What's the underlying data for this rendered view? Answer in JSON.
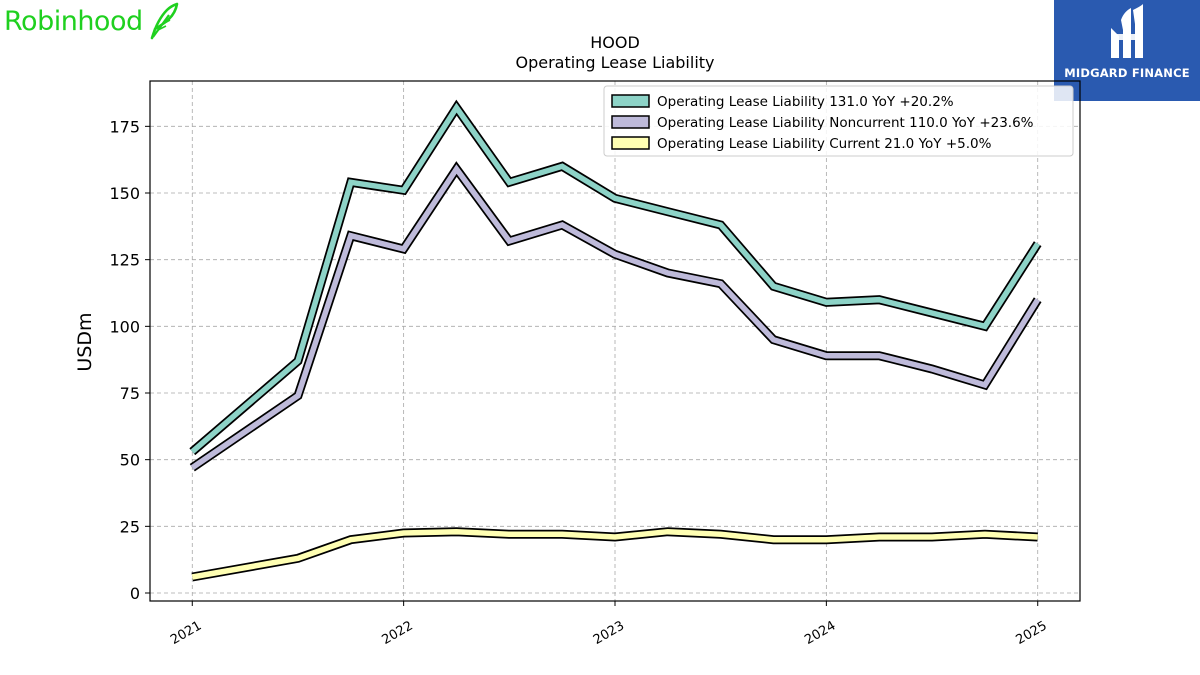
{
  "brand": {
    "name": "Robinhood",
    "color": "#1fd01f",
    "icon": "feather-icon"
  },
  "badge": {
    "name": "MIDGARD FINANCE",
    "background": "#2a5ab0",
    "icon": "midgard-logo-icon"
  },
  "chart_data": {
    "type": "line",
    "title": "HOOD",
    "subtitle": "Operating Lease Liability",
    "ylabel": "USDm",
    "xlabel": "",
    "ylim": [
      -3,
      192
    ],
    "xlim": [
      2020.8,
      2025.2
    ],
    "yticks": [
      0,
      25,
      50,
      75,
      100,
      125,
      150,
      175
    ],
    "xticks": [
      {
        "value": 2021,
        "label": "2021"
      },
      {
        "value": 2022,
        "label": "2022"
      },
      {
        "value": 2023,
        "label": "2023"
      },
      {
        "value": 2024,
        "label": "2024"
      },
      {
        "value": 2025,
        "label": "2025"
      }
    ],
    "grid": true,
    "legend_position": "top-right",
    "x": [
      2021.0,
      2021.5,
      2021.75,
      2022.0,
      2022.25,
      2022.5,
      2022.75,
      2023.0,
      2023.25,
      2023.5,
      2023.75,
      2024.0,
      2024.25,
      2024.5,
      2024.75,
      2025.0
    ],
    "series": [
      {
        "name": "Operating Lease Liability",
        "legend": "Operating Lease Liability  131.0 YoY +20.2%",
        "color": "#8dd3c7",
        "values": [
          53,
          87,
          154,
          151,
          182,
          154,
          160,
          148,
          143,
          138,
          115,
          109,
          110,
          105,
          100,
          131
        ]
      },
      {
        "name": "Operating Lease Liability Noncurrent",
        "legend": "Operating Lease Liability Noncurrent  110.0 YoY +23.6%",
        "color": "#bebada",
        "values": [
          47,
          74,
          134,
          129,
          159,
          132,
          138,
          127,
          120,
          116,
          95,
          89,
          89,
          84,
          78,
          110
        ]
      },
      {
        "name": "Operating Lease Liability Current",
        "legend": "Operating Lease Liability Current  21.0 YoY +5.0%",
        "color": "#ffffb3",
        "values": [
          6,
          13,
          20,
          22.5,
          23,
          22,
          22,
          21,
          23,
          22,
          20,
          20,
          21,
          21,
          22,
          21
        ]
      }
    ]
  }
}
